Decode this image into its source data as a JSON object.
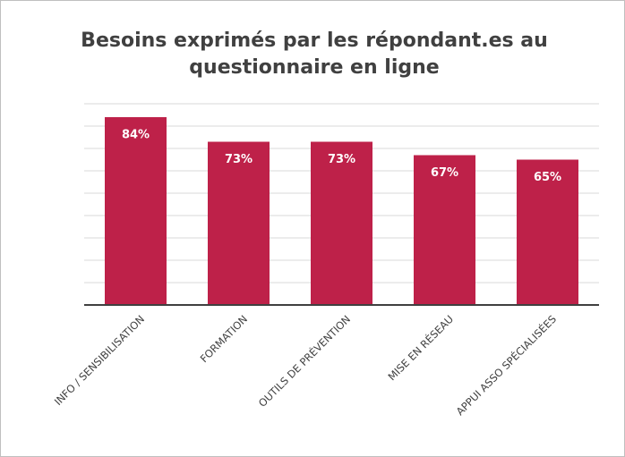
{
  "chart_data": {
    "type": "bar",
    "title": "Besoins exprimés par les répondant.es au questionnaire en ligne",
    "categories": [
      "INFO / SENSIBILISATION",
      "FORMATION",
      "OUTILS DE PRÉVENTION",
      "MISE EN RÉSEAU",
      "APPUI ASSO SPÉCIALISÉES"
    ],
    "values": [
      84,
      73,
      73,
      67,
      65
    ],
    "value_labels": [
      "84%",
      "73%",
      "73%",
      "67%",
      "65%"
    ],
    "color": "#be2149",
    "ylim": [
      0,
      90
    ],
    "yticks": [
      0,
      10,
      20,
      30,
      40,
      50,
      60,
      70,
      80,
      90
    ],
    "grid": true
  }
}
